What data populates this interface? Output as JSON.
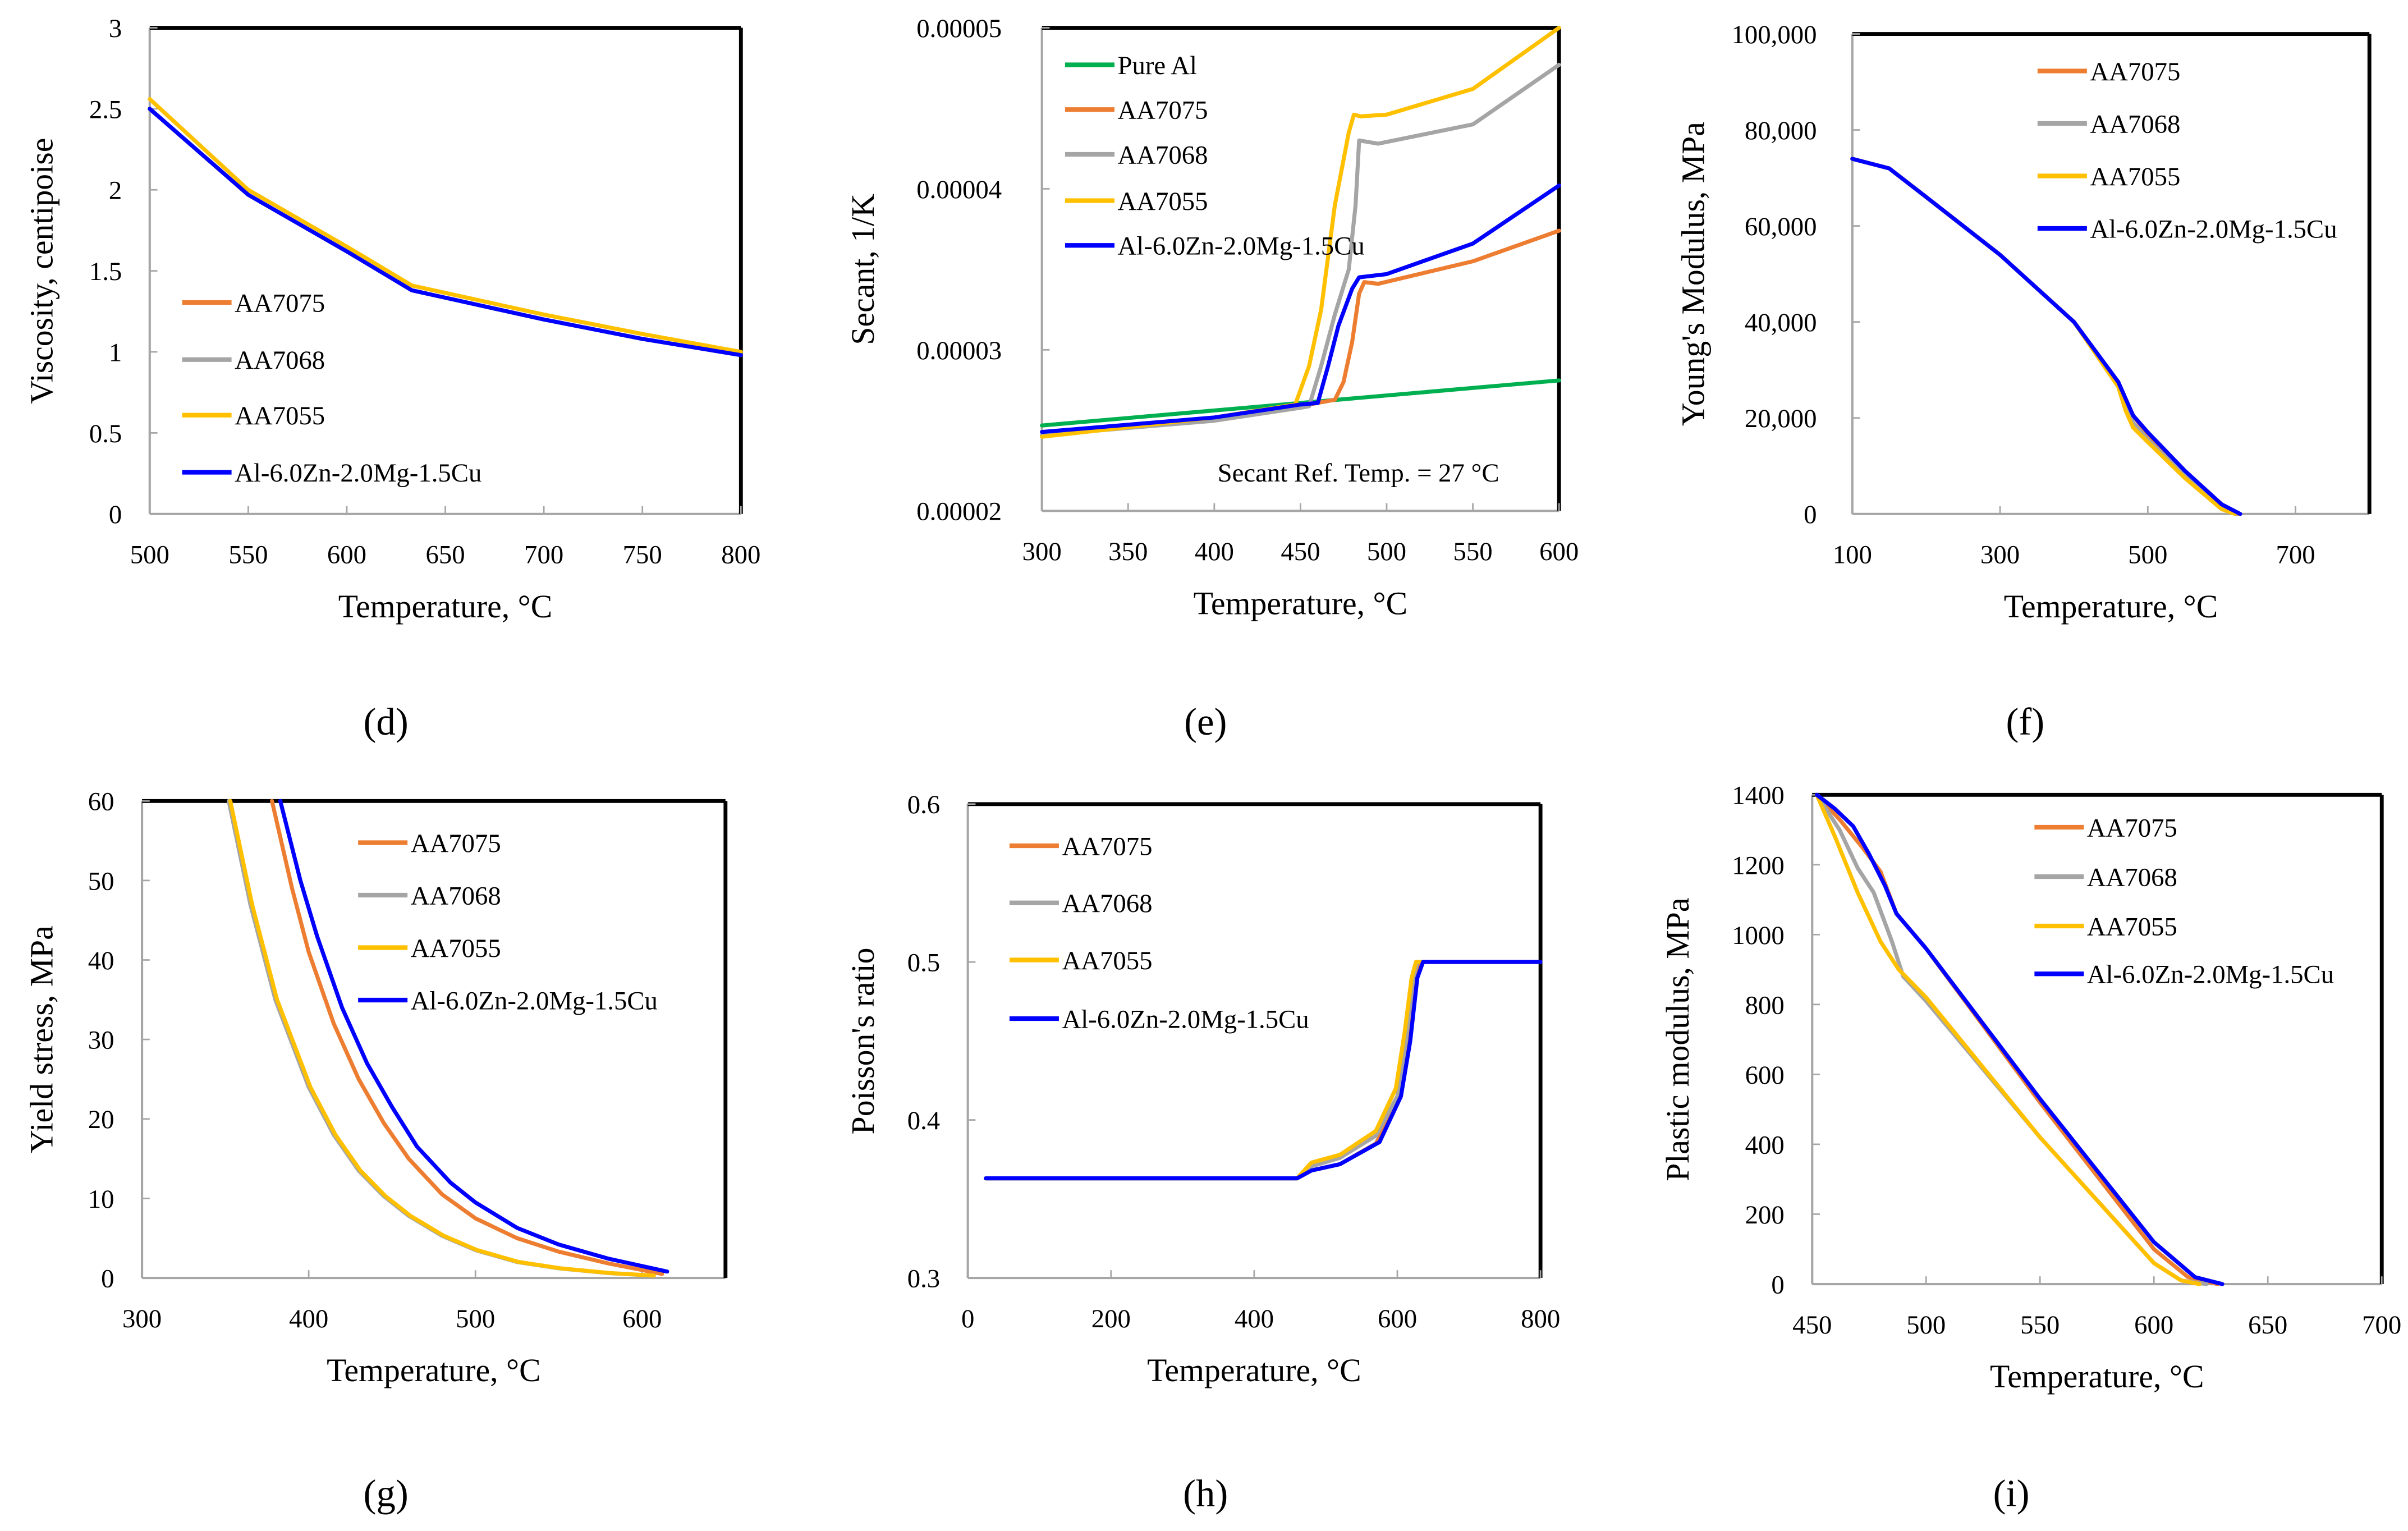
{
  "colors": {
    "AA7075": "#ED7D31",
    "AA7068": "#A5A5A5",
    "AA7055": "#FFC000",
    "Al-6.0Zn-2.0Mg-1.5Cu": "#0000FF",
    "Pure Al": "#00B050"
  },
  "chart_data": [
    {
      "id": "d",
      "panel_label": "(d)",
      "type": "line",
      "xlabel": "Temperature, °C",
      "ylabel": "Viscosity, centipoise",
      "xlim": [
        500,
        800
      ],
      "ylim": [
        0,
        3
      ],
      "xticks": [
        500,
        550,
        600,
        650,
        700,
        750,
        800
      ],
      "xtick_labels": [
        "500",
        "550",
        "600",
        "650",
        "700",
        "750",
        "800"
      ],
      "yticks": [
        0,
        0.5,
        1,
        1.5,
        2,
        2.5,
        3
      ],
      "ytick_labels": [
        "0",
        "0.5",
        "1",
        "1.5",
        "2",
        "2.5",
        "3"
      ],
      "legend_position": "bottom-left",
      "series": [
        {
          "name": "AA7075",
          "x": [
            500,
            550,
            600,
            633,
            700,
            750,
            800
          ],
          "y": [
            2.5,
            1.97,
            1.62,
            1.38,
            1.2,
            1.08,
            0.98
          ]
        },
        {
          "name": "AA7068",
          "x": [
            500,
            550,
            600,
            633,
            700,
            750,
            800
          ],
          "y": [
            2.5,
            1.97,
            1.62,
            1.38,
            1.2,
            1.08,
            0.98
          ]
        },
        {
          "name": "AA7055",
          "x": [
            500,
            550,
            600,
            633,
            700,
            750,
            800
          ],
          "y": [
            2.56,
            2.0,
            1.65,
            1.41,
            1.23,
            1.11,
            1.0
          ]
        },
        {
          "name": "Al-6.0Zn-2.0Mg-1.5Cu",
          "x": [
            500,
            550,
            600,
            633,
            700,
            750,
            800
          ],
          "y": [
            2.5,
            1.97,
            1.62,
            1.38,
            1.2,
            1.08,
            0.98
          ]
        }
      ]
    },
    {
      "id": "e",
      "panel_label": "(e)",
      "type": "line",
      "xlabel": "Temperature, °C",
      "ylabel": "Secant, 1/K",
      "xlim": [
        300,
        600
      ],
      "ylim": [
        2e-05,
        5e-05
      ],
      "xticks": [
        300,
        350,
        400,
        450,
        500,
        550,
        600
      ],
      "xtick_labels": [
        "300",
        "350",
        "400",
        "450",
        "500",
        "550",
        "600"
      ],
      "yticks": [
        2e-05,
        3e-05,
        4e-05,
        5e-05
      ],
      "ytick_labels": [
        "0.00002",
        "0.00003",
        "0.00004",
        "0.00005"
      ],
      "legend_position": "top-left",
      "annotation": "Secant Ref. Temp. = 27 °C",
      "series": [
        {
          "name": "Pure Al",
          "x": [
            300,
            600
          ],
          "y": [
            2.53e-05,
            2.81e-05
          ]
        },
        {
          "name": "AA7075",
          "x": [
            300,
            400,
            455,
            470,
            475,
            480,
            484,
            487,
            495,
            550,
            600
          ],
          "y": [
            2.47e-05,
            2.57e-05,
            2.66e-05,
            2.69e-05,
            2.8e-05,
            3.05e-05,
            3.35e-05,
            3.42e-05,
            3.41e-05,
            3.55e-05,
            3.74e-05
          ]
        },
        {
          "name": "AA7068",
          "x": [
            300,
            400,
            450,
            455,
            462,
            470,
            478,
            482,
            484,
            495,
            550,
            600
          ],
          "y": [
            2.47e-05,
            2.56e-05,
            2.64e-05,
            2.65e-05,
            2.9e-05,
            3.22e-05,
            3.5e-05,
            3.9e-05,
            4.3e-05,
            4.28e-05,
            4.4e-05,
            4.77e-05
          ]
        },
        {
          "name": "AA7055",
          "x": [
            300,
            400,
            447,
            455,
            462,
            470,
            478,
            481,
            485,
            500,
            550,
            600
          ],
          "y": [
            2.46e-05,
            2.58e-05,
            2.66e-05,
            2.9e-05,
            3.25e-05,
            3.9e-05,
            4.35e-05,
            4.46e-05,
            4.45e-05,
            4.46e-05,
            4.62e-05,
            5e-05
          ]
        },
        {
          "name": "Al-6.0Zn-2.0Mg-1.5Cu",
          "x": [
            300,
            400,
            450,
            460,
            466,
            472,
            480,
            484,
            500,
            550,
            600
          ],
          "y": [
            2.49e-05,
            2.58e-05,
            2.66e-05,
            2.67e-05,
            2.9e-05,
            3.15e-05,
            3.38e-05,
            3.45e-05,
            3.47e-05,
            3.66e-05,
            4.02e-05
          ]
        }
      ]
    },
    {
      "id": "f",
      "panel_label": "(f)",
      "type": "line",
      "xlabel": "Temperature, °C",
      "ylabel": "Young's Modulus, MPa",
      "xlim": [
        100,
        800
      ],
      "ylim": [
        0,
        100000
      ],
      "xticks": [
        100,
        300,
        500,
        700
      ],
      "xtick_labels": [
        "100",
        "300",
        "500",
        "700"
      ],
      "yticks": [
        0,
        20000,
        40000,
        60000,
        80000,
        100000
      ],
      "ytick_labels": [
        "0",
        "20,000",
        "40,000",
        "60,000",
        "80,000",
        "100,000"
      ],
      "legend_position": "top-right",
      "series": [
        {
          "name": "AA7075",
          "x": [
            100,
            150,
            200,
            300,
            400,
            460,
            470,
            480,
            500,
            550,
            600,
            622
          ],
          "y": [
            74000,
            72000,
            66000,
            54000,
            40000,
            27000,
            23500,
            20500,
            16500,
            8500,
            1500,
            0
          ]
        },
        {
          "name": "AA7068",
          "x": [
            100,
            150,
            200,
            300,
            400,
            460,
            470,
            480,
            500,
            550,
            600,
            620
          ],
          "y": [
            74000,
            72000,
            66000,
            54000,
            40000,
            27000,
            22500,
            19000,
            15500,
            8000,
            1200,
            0
          ]
        },
        {
          "name": "AA7055",
          "x": [
            100,
            150,
            200,
            300,
            400,
            460,
            470,
            480,
            500,
            550,
            600,
            618
          ],
          "y": [
            74000,
            72000,
            66000,
            54000,
            40000,
            26500,
            21500,
            18000,
            15000,
            7500,
            1000,
            0
          ]
        },
        {
          "name": "Al-6.0Zn-2.0Mg-1.5Cu",
          "x": [
            100,
            150,
            200,
            300,
            400,
            460,
            470,
            480,
            500,
            550,
            600,
            625
          ],
          "y": [
            74000,
            72000,
            66000,
            54000,
            40000,
            27500,
            24000,
            20500,
            17000,
            9000,
            2000,
            0
          ]
        }
      ]
    },
    {
      "id": "g",
      "panel_label": "(g)",
      "type": "line",
      "xlabel": "Temperature, °C",
      "ylabel": "Yield stress, MPa",
      "xlim": [
        300,
        650
      ],
      "ylim": [
        0,
        60
      ],
      "xticks": [
        300,
        400,
        500,
        600
      ],
      "xtick_labels": [
        "300",
        "400",
        "500",
        "600"
      ],
      "yticks": [
        0,
        10,
        20,
        30,
        40,
        50,
        60
      ],
      "ytick_labels": [
        "0",
        "10",
        "20",
        "30",
        "40",
        "50",
        "60"
      ],
      "legend_position": "top-right",
      "series": [
        {
          "name": "AA7075",
          "x": [
            378,
            390,
            400,
            415,
            430,
            445,
            460,
            480,
            500,
            525,
            550,
            580,
            612
          ],
          "y": [
            60,
            49,
            41,
            32,
            25,
            19.5,
            15,
            10.5,
            7.5,
            5,
            3.3,
            1.8,
            0.5
          ]
        },
        {
          "name": "AA7068",
          "x": [
            352,
            365,
            380,
            400,
            415,
            430,
            445,
            460,
            480,
            500,
            525,
            550,
            580,
            606
          ],
          "y": [
            60,
            47,
            35,
            24,
            18,
            13.5,
            10.3,
            7.8,
            5.3,
            3.5,
            2,
            1.2,
            0.6,
            0.3
          ]
        },
        {
          "name": "AA7055",
          "x": [
            353,
            366,
            381,
            401,
            416,
            431,
            446,
            461,
            481,
            501,
            526,
            551,
            581,
            607
          ],
          "y": [
            60,
            47,
            35,
            24,
            18,
            13.5,
            10.3,
            7.8,
            5.3,
            3.5,
            2,
            1.2,
            0.6,
            0.3
          ]
        },
        {
          "name": "Al-6.0Zn-2.0Mg-1.5Cu",
          "x": [
            383,
            395,
            405,
            420,
            435,
            450,
            465,
            485,
            500,
            525,
            550,
            580,
            615
          ],
          "y": [
            60,
            50,
            43,
            34,
            27,
            21.5,
            16.5,
            12,
            9.5,
            6.3,
            4.2,
            2.4,
            0.8
          ]
        }
      ]
    },
    {
      "id": "h",
      "panel_label": "(h)",
      "type": "line",
      "xlabel": "Temperature, °C",
      "ylabel": "Poisson's ratio",
      "xlim": [
        0,
        800
      ],
      "ylim": [
        0.3,
        0.6
      ],
      "xticks": [
        0,
        200,
        400,
        600,
        800
      ],
      "xtick_labels": [
        "0",
        "200",
        "400",
        "600",
        "800"
      ],
      "yticks": [
        0.3,
        0.4,
        0.5,
        0.6
      ],
      "ytick_labels": [
        "0.3",
        "0.4",
        "0.5",
        "0.6"
      ],
      "legend_position": "top-left",
      "series": [
        {
          "name": "AA7075",
          "x": [
            25,
            460,
            480,
            520,
            570,
            600,
            615,
            625,
            632,
            800
          ],
          "y": [
            0.363,
            0.363,
            0.368,
            0.372,
            0.385,
            0.41,
            0.45,
            0.49,
            0.5,
            0.5
          ]
        },
        {
          "name": "AA7068",
          "x": [
            25,
            460,
            475,
            520,
            570,
            600,
            612,
            622,
            628,
            800
          ],
          "y": [
            0.363,
            0.363,
            0.37,
            0.376,
            0.39,
            0.415,
            0.45,
            0.49,
            0.5,
            0.5
          ]
        },
        {
          "name": "AA7055",
          "x": [
            25,
            460,
            480,
            520,
            570,
            598,
            610,
            620,
            626,
            800
          ],
          "y": [
            0.363,
            0.363,
            0.373,
            0.378,
            0.393,
            0.42,
            0.455,
            0.49,
            0.5,
            0.5
          ]
        },
        {
          "name": "Al-6.0Zn-2.0Mg-1.5Cu",
          "x": [
            25,
            460,
            480,
            520,
            575,
            605,
            618,
            628,
            636,
            800
          ],
          "y": [
            0.363,
            0.363,
            0.368,
            0.372,
            0.386,
            0.415,
            0.45,
            0.49,
            0.5,
            0.5
          ]
        }
      ]
    },
    {
      "id": "i",
      "panel_label": "(i)",
      "type": "line",
      "xlabel": "Temperature, °C",
      "ylabel": "Plastic modulus, MPa",
      "xlim": [
        450,
        700
      ],
      "ylim": [
        0,
        1400
      ],
      "xticks": [
        450,
        500,
        550,
        600,
        650,
        700
      ],
      "xtick_labels": [
        "450",
        "500",
        "550",
        "600",
        "650",
        "700"
      ],
      "yticks": [
        0,
        200,
        400,
        600,
        800,
        1000,
        1200,
        1400
      ],
      "ytick_labels": [
        "0",
        "200",
        "400",
        "600",
        "800",
        "1000",
        "1200",
        "1400"
      ],
      "legend_position": "top-right",
      "series": [
        {
          "name": "AA7075",
          "x": [
            452,
            462,
            472,
            480,
            487,
            500,
            550,
            600,
            615,
            628
          ],
          "y": [
            1400,
            1330,
            1250,
            1180,
            1060,
            960,
            520,
            100,
            20,
            0
          ]
        },
        {
          "name": "AA7068",
          "x": [
            452,
            462,
            470,
            477,
            485,
            490,
            500,
            550,
            600,
            612,
            623
          ],
          "y": [
            1400,
            1300,
            1190,
            1120,
            980,
            880,
            810,
            420,
            60,
            10,
            0
          ]
        },
        {
          "name": "AA7055",
          "x": [
            452,
            460,
            470,
            480,
            488,
            500,
            550,
            600,
            612,
            620
          ],
          "y": [
            1400,
            1280,
            1120,
            980,
            900,
            820,
            420,
            60,
            10,
            0
          ]
        },
        {
          "name": "Al-6.0Zn-2.0Mg-1.5Cu",
          "x": [
            452,
            460,
            468,
            475,
            482,
            487,
            500,
            550,
            600,
            618,
            630
          ],
          "y": [
            1400,
            1360,
            1310,
            1230,
            1140,
            1060,
            960,
            530,
            120,
            20,
            0
          ]
        }
      ]
    }
  ]
}
